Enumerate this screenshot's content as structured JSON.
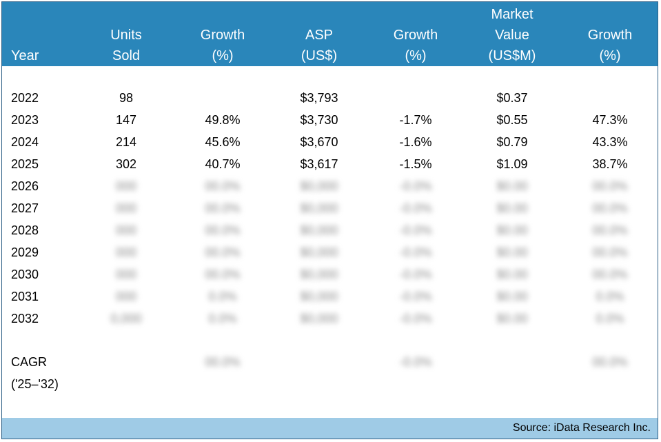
{
  "chart_data": {
    "type": "table",
    "columns": [
      {
        "key": "year",
        "lines": [
          "Year"
        ]
      },
      {
        "key": "units",
        "lines": [
          "Units",
          "Sold"
        ]
      },
      {
        "key": "units_growth",
        "lines": [
          "Growth",
          "(%)"
        ]
      },
      {
        "key": "asp",
        "lines": [
          "ASP",
          "(US$)"
        ]
      },
      {
        "key": "asp_growth",
        "lines": [
          "Growth",
          "(%)"
        ]
      },
      {
        "key": "value",
        "lines": [
          "Market",
          "Value",
          "(US$M)"
        ]
      },
      {
        "key": "value_growth",
        "lines": [
          "Growth",
          "(%)"
        ]
      }
    ],
    "rows": [
      {
        "year": "2022",
        "units": "98",
        "units_growth": "",
        "asp": "$3,793",
        "asp_growth": "",
        "value": "$0.37",
        "value_growth": "",
        "blurred": false
      },
      {
        "year": "2023",
        "units": "147",
        "units_growth": "49.8%",
        "asp": "$3,730",
        "asp_growth": "-1.7%",
        "value": "$0.55",
        "value_growth": "47.3%",
        "blurred": false
      },
      {
        "year": "2024",
        "units": "214",
        "units_growth": "45.6%",
        "asp": "$3,670",
        "asp_growth": "-1.6%",
        "value": "$0.79",
        "value_growth": "43.3%",
        "blurred": false
      },
      {
        "year": "2025",
        "units": "302",
        "units_growth": "40.7%",
        "asp": "$3,617",
        "asp_growth": "-1.5%",
        "value": "$1.09",
        "value_growth": "38.7%",
        "blurred": false
      },
      {
        "year": "2026",
        "units": "000",
        "units_growth": "00.0%",
        "asp": "$0,000",
        "asp_growth": "-0.0%",
        "value": "$0.00",
        "value_growth": "00.0%",
        "blurred": true
      },
      {
        "year": "2027",
        "units": "000",
        "units_growth": "00.0%",
        "asp": "$0,000",
        "asp_growth": "-0.0%",
        "value": "$0.00",
        "value_growth": "00.0%",
        "blurred": true
      },
      {
        "year": "2028",
        "units": "000",
        "units_growth": "00.0%",
        "asp": "$0,000",
        "asp_growth": "-0.0%",
        "value": "$0.00",
        "value_growth": "00.0%",
        "blurred": true
      },
      {
        "year": "2029",
        "units": "000",
        "units_growth": "00.0%",
        "asp": "$0,000",
        "asp_growth": "-0.0%",
        "value": "$0.00",
        "value_growth": "00.0%",
        "blurred": true
      },
      {
        "year": "2030",
        "units": "000",
        "units_growth": "00.0%",
        "asp": "$0,000",
        "asp_growth": "-0.0%",
        "value": "$0.00",
        "value_growth": "00.0%",
        "blurred": true
      },
      {
        "year": "2031",
        "units": "000",
        "units_growth": "0.0%",
        "asp": "$0,000",
        "asp_growth": "-0.0%",
        "value": "$0.00",
        "value_growth": "0.0%",
        "blurred": true
      },
      {
        "year": "2032",
        "units": "0,000",
        "units_growth": "0.0%",
        "asp": "$0,000",
        "asp_growth": "-0.0%",
        "value": "$0.00",
        "value_growth": "0.0%",
        "blurred": true
      }
    ],
    "cagr": {
      "label_lines": [
        "CAGR",
        "('25–'32)"
      ],
      "units_growth": "00.0%",
      "asp_growth": "-0.0%",
      "value_growth": "00.0%",
      "blurred": true
    }
  },
  "footer": {
    "source": "Source: iData Research Inc."
  },
  "colors": {
    "header": "#2a86ba",
    "footer": "#9fcbe6",
    "border": "#2d5f86"
  }
}
